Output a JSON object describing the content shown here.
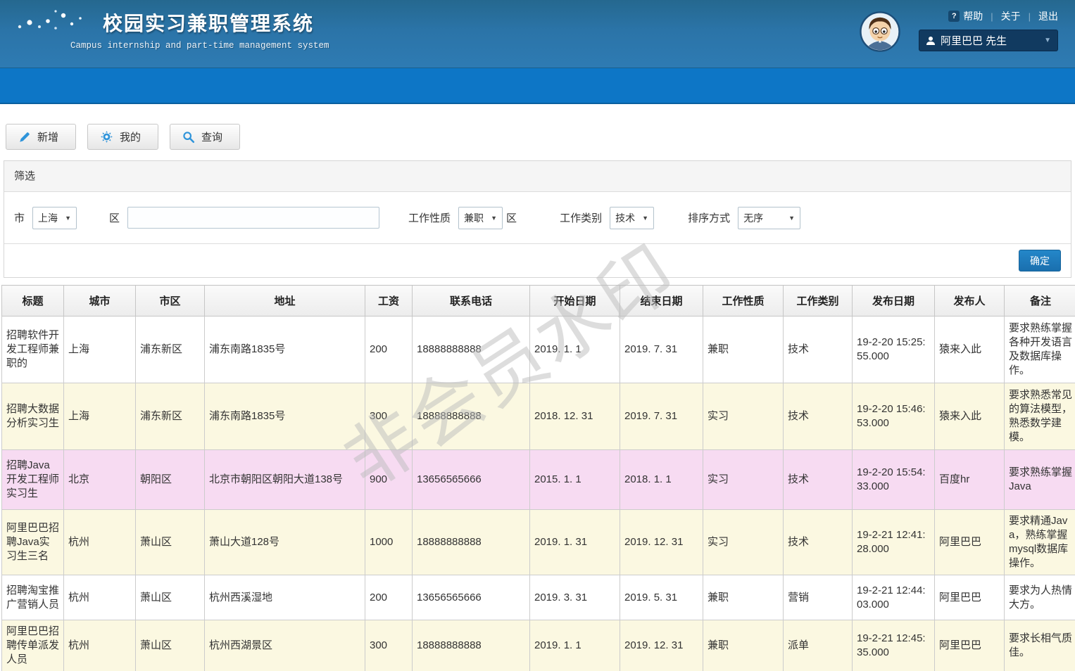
{
  "header": {
    "title": "校园实习兼职管理系统",
    "subtitle": "Campus internship and part-time management system",
    "links": {
      "help": "帮助",
      "about": "关于",
      "exit": "退出"
    },
    "user_name": "阿里巴巴 先生"
  },
  "toolbar": {
    "buttons": [
      {
        "label": "新增",
        "icon": "pencil-icon"
      },
      {
        "label": "我的",
        "icon": "gear-icon"
      },
      {
        "label": "查询",
        "icon": "search-icon"
      }
    ]
  },
  "filter": {
    "title": "筛选",
    "city_label": "市",
    "city_value": "上海",
    "district_label": "区",
    "district_input_value": "",
    "nature_label": "工作性质",
    "nature_value": "兼职",
    "district2_label": "区",
    "category_label": "工作类别",
    "category_value": "技术",
    "sort_label": "排序方式",
    "sort_value": "无序",
    "confirm_label": "确定"
  },
  "watermark": "非会员水印",
  "colors": {
    "accent_blue": "#0d76c6",
    "row_cream": "#fbf8e1",
    "row_pink": "#f7dbf2",
    "confirm_button": "#1a6fae"
  },
  "table": {
    "columns": [
      "标题",
      "城市",
      "市区",
      "地址",
      "工资",
      "联系电话",
      "开始日期",
      "结束日期",
      "工作性质",
      "工作类别",
      "发布日期",
      "发布人",
      "备注"
    ],
    "rows": [
      {
        "tone": "white",
        "cells": [
          "招聘软件开发工程师兼职的",
          "上海",
          "浦东新区",
          "浦东南路1835号",
          "200",
          "18888888888",
          "2019. 1. 1",
          "2019. 7. 31",
          "兼职",
          "技术",
          "19-2-20 15:25:55.000",
          "猿来入此",
          "要求熟练掌握各种开发语言及数据库操作。"
        ]
      },
      {
        "tone": "cream",
        "cells": [
          "招聘大数据分析实习生",
          "上海",
          "浦东新区",
          "浦东南路1835号",
          "300",
          "18888888888",
          "2018. 12. 31",
          "2019. 7. 31",
          "实习",
          "技术",
          "19-2-20 15:46:53.000",
          "猿来入此",
          "要求熟悉常见的算法模型，熟悉数学建模。"
        ]
      },
      {
        "tone": "pink",
        "cells": [
          "招聘Java开发工程师实习生",
          "北京",
          "朝阳区",
          "北京市朝阳区朝阳大道138号",
          "900",
          "13656565666",
          "2015. 1. 1",
          "2018. 1. 1",
          "实习",
          "技术",
          "19-2-20 15:54:33.000",
          "百度hr",
          "要求熟练掌握Java"
        ]
      },
      {
        "tone": "cream",
        "cells": [
          "阿里巴巴招聘Java实习生三名",
          "杭州",
          "萧山区",
          "萧山大道128号",
          "1000",
          "18888888888",
          "2019. 1. 31",
          "2019. 12. 31",
          "实习",
          "技术",
          "19-2-21 12:41:28.000",
          "阿里巴巴",
          "要求精通Java，熟练掌握mysql数据库操作。"
        ]
      },
      {
        "tone": "white",
        "cells": [
          "招聘淘宝推广营销人员",
          "杭州",
          "萧山区",
          "杭州西溪湿地",
          "200",
          "13656565666",
          "2019. 3. 31",
          "2019. 5. 31",
          "兼职",
          "营销",
          "19-2-21 12:44:03.000",
          "阿里巴巴",
          "要求为人热情大方。"
        ]
      },
      {
        "tone": "cream",
        "cells": [
          "阿里巴巴招聘传单派发人员",
          "杭州",
          "萧山区",
          "杭州西湖景区",
          "300",
          "18888888888",
          "2019. 1. 1",
          "2019. 12. 31",
          "兼职",
          "派单",
          "19-2-21 12:45:35.000",
          "阿里巴巴",
          "要求长相气质佳。"
        ]
      }
    ]
  }
}
